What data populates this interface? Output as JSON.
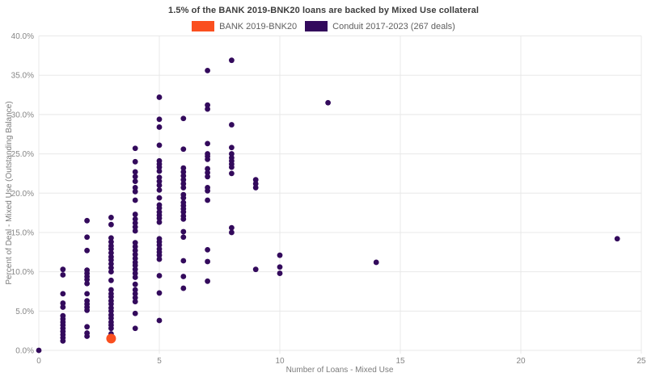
{
  "title": "1.5% of the BANK 2019-BNK20 loans are backed by Mixed Use collateral",
  "legend": [
    {
      "label": "BANK 2019-BNK20",
      "color": "#fa4f1f"
    },
    {
      "label": "Conduit 2017-2023 (267 deals)",
      "color": "#330a5c"
    }
  ],
  "chart_data": {
    "type": "scatter",
    "title": "1.5% of the BANK 2019-BNK20 loans are backed by Mixed Use collateral",
    "xlabel": "Number of Loans - Mixed Use",
    "ylabel": "Percent of Deal - Mixed Use (Outstanding Balance)",
    "xlim": [
      0,
      25
    ],
    "ylim": [
      0,
      40
    ],
    "grid": true,
    "legend_position": "top-center",
    "x_ticks": {
      "values": [
        0,
        5,
        10,
        15,
        20,
        25
      ],
      "labels": [
        "0",
        "5",
        "10",
        "15",
        "20",
        "25"
      ]
    },
    "y_ticks": {
      "values": [
        0,
        5,
        10,
        15,
        20,
        25,
        30,
        35,
        40
      ],
      "labels": [
        "0.0%",
        "5.0%",
        "10.0%",
        "15.0%",
        "20.0%",
        "25.0%",
        "30.0%",
        "35.0%",
        "40.0%"
      ]
    },
    "series": [
      {
        "name": "Conduit 2017-2023 (267 deals)",
        "color": "#330a5c",
        "marker_radius": 3.4,
        "points": [
          [
            0,
            0.0
          ],
          [
            1,
            10.3
          ],
          [
            1,
            9.6
          ],
          [
            1,
            7.2
          ],
          [
            1,
            6.0
          ],
          [
            1,
            5.5
          ],
          [
            1,
            4.4
          ],
          [
            1,
            4.0
          ],
          [
            1,
            3.6
          ],
          [
            1,
            3.2
          ],
          [
            1,
            2.8
          ],
          [
            1,
            2.4
          ],
          [
            1,
            2.0
          ],
          [
            1,
            1.6
          ],
          [
            1,
            1.2
          ],
          [
            2,
            16.5
          ],
          [
            2,
            14.4
          ],
          [
            2,
            12.7
          ],
          [
            2,
            10.2
          ],
          [
            2,
            9.8
          ],
          [
            2,
            9.4
          ],
          [
            2,
            9.0
          ],
          [
            2,
            8.5
          ],
          [
            2,
            7.2
          ],
          [
            2,
            6.3
          ],
          [
            2,
            5.9
          ],
          [
            2,
            5.5
          ],
          [
            2,
            5.1
          ],
          [
            2,
            3.0
          ],
          [
            2,
            2.2
          ],
          [
            2,
            1.8
          ],
          [
            3,
            16.9
          ],
          [
            3,
            16.0
          ],
          [
            3,
            14.3
          ],
          [
            3,
            13.8
          ],
          [
            3,
            13.3
          ],
          [
            3,
            12.9
          ],
          [
            3,
            12.4
          ],
          [
            3,
            11.9
          ],
          [
            3,
            11.5
          ],
          [
            3,
            11.0
          ],
          [
            3,
            10.5
          ],
          [
            3,
            10.0
          ],
          [
            3,
            8.9
          ],
          [
            3,
            7.7
          ],
          [
            3,
            7.2
          ],
          [
            3,
            6.8
          ],
          [
            3,
            6.3
          ],
          [
            3,
            5.9
          ],
          [
            3,
            5.4
          ],
          [
            3,
            5.0
          ],
          [
            3,
            4.5
          ],
          [
            3,
            4.1
          ],
          [
            3,
            3.6
          ],
          [
            3,
            3.2
          ],
          [
            3,
            2.8
          ],
          [
            3,
            2.1
          ],
          [
            3,
            1.6
          ],
          [
            4,
            25.7
          ],
          [
            4,
            24.0
          ],
          [
            4,
            22.7
          ],
          [
            4,
            22.1
          ],
          [
            4,
            21.5
          ],
          [
            4,
            20.7
          ],
          [
            4,
            20.2
          ],
          [
            4,
            19.1
          ],
          [
            4,
            17.3
          ],
          [
            4,
            16.7
          ],
          [
            4,
            16.2
          ],
          [
            4,
            15.7
          ],
          [
            4,
            15.2
          ],
          [
            4,
            13.7
          ],
          [
            4,
            13.2
          ],
          [
            4,
            12.7
          ],
          [
            4,
            12.2
          ],
          [
            4,
            11.7
          ],
          [
            4,
            11.2
          ],
          [
            4,
            10.8
          ],
          [
            4,
            10.3
          ],
          [
            4,
            9.8
          ],
          [
            4,
            9.3
          ],
          [
            4,
            8.4
          ],
          [
            4,
            7.7
          ],
          [
            4,
            7.2
          ],
          [
            4,
            6.7
          ],
          [
            4,
            6.2
          ],
          [
            4,
            4.7
          ],
          [
            4,
            2.8
          ],
          [
            5,
            32.2
          ],
          [
            5,
            29.4
          ],
          [
            5,
            28.4
          ],
          [
            5,
            26.1
          ],
          [
            5,
            24.1
          ],
          [
            5,
            23.7
          ],
          [
            5,
            23.3
          ],
          [
            5,
            22.8
          ],
          [
            5,
            22.0
          ],
          [
            5,
            21.5
          ],
          [
            5,
            21.0
          ],
          [
            5,
            20.4
          ],
          [
            5,
            19.4
          ],
          [
            5,
            18.5
          ],
          [
            5,
            18.1
          ],
          [
            5,
            17.6
          ],
          [
            5,
            17.2
          ],
          [
            5,
            16.8
          ],
          [
            5,
            16.3
          ],
          [
            5,
            14.2
          ],
          [
            5,
            13.8
          ],
          [
            5,
            13.4
          ],
          [
            5,
            12.9
          ],
          [
            5,
            12.5
          ],
          [
            5,
            12.1
          ],
          [
            5,
            11.6
          ],
          [
            5,
            9.5
          ],
          [
            5,
            7.3
          ],
          [
            5,
            3.8
          ],
          [
            6,
            29.5
          ],
          [
            6,
            25.6
          ],
          [
            6,
            23.2
          ],
          [
            6,
            22.7
          ],
          [
            6,
            22.2
          ],
          [
            6,
            21.7
          ],
          [
            6,
            21.2
          ],
          [
            6,
            20.7
          ],
          [
            6,
            19.8
          ],
          [
            6,
            19.4
          ],
          [
            6,
            18.8
          ],
          [
            6,
            18.4
          ],
          [
            6,
            18.0
          ],
          [
            6,
            17.6
          ],
          [
            6,
            17.1
          ],
          [
            6,
            16.7
          ],
          [
            6,
            15.1
          ],
          [
            6,
            14.4
          ],
          [
            6,
            11.4
          ],
          [
            6,
            9.4
          ],
          [
            6,
            7.9
          ],
          [
            7,
            35.6
          ],
          [
            7,
            31.2
          ],
          [
            7,
            30.7
          ],
          [
            7,
            26.3
          ],
          [
            7,
            25.0
          ],
          [
            7,
            24.7
          ],
          [
            7,
            24.3
          ],
          [
            7,
            23.1
          ],
          [
            7,
            22.6
          ],
          [
            7,
            22.1
          ],
          [
            7,
            20.7
          ],
          [
            7,
            20.3
          ],
          [
            7,
            19.1
          ],
          [
            7,
            12.8
          ],
          [
            7,
            11.3
          ],
          [
            7,
            8.8
          ],
          [
            8,
            36.9
          ],
          [
            8,
            28.7
          ],
          [
            8,
            25.8
          ],
          [
            8,
            25.0
          ],
          [
            8,
            24.5
          ],
          [
            8,
            24.1
          ],
          [
            8,
            23.7
          ],
          [
            8,
            23.3
          ],
          [
            8,
            22.5
          ],
          [
            8,
            15.6
          ],
          [
            8,
            15.0
          ],
          [
            9,
            21.7
          ],
          [
            9,
            21.2
          ],
          [
            9,
            20.7
          ],
          [
            9,
            10.3
          ],
          [
            10,
            12.1
          ],
          [
            10,
            10.6
          ],
          [
            10,
            9.8
          ],
          [
            12,
            31.5
          ],
          [
            14,
            11.2
          ],
          [
            24,
            14.2
          ]
        ]
      },
      {
        "name": "BANK 2019-BNK20",
        "color": "#fa4f1f",
        "marker_radius": 6,
        "points": [
          [
            3,
            1.5
          ]
        ]
      }
    ]
  },
  "colors": {
    "background": "#ffffff",
    "gridline": "#e8e8e8",
    "title_text": "#3d3d3d",
    "legend_text": "#5f5f5f",
    "tick_text": "#868686"
  }
}
